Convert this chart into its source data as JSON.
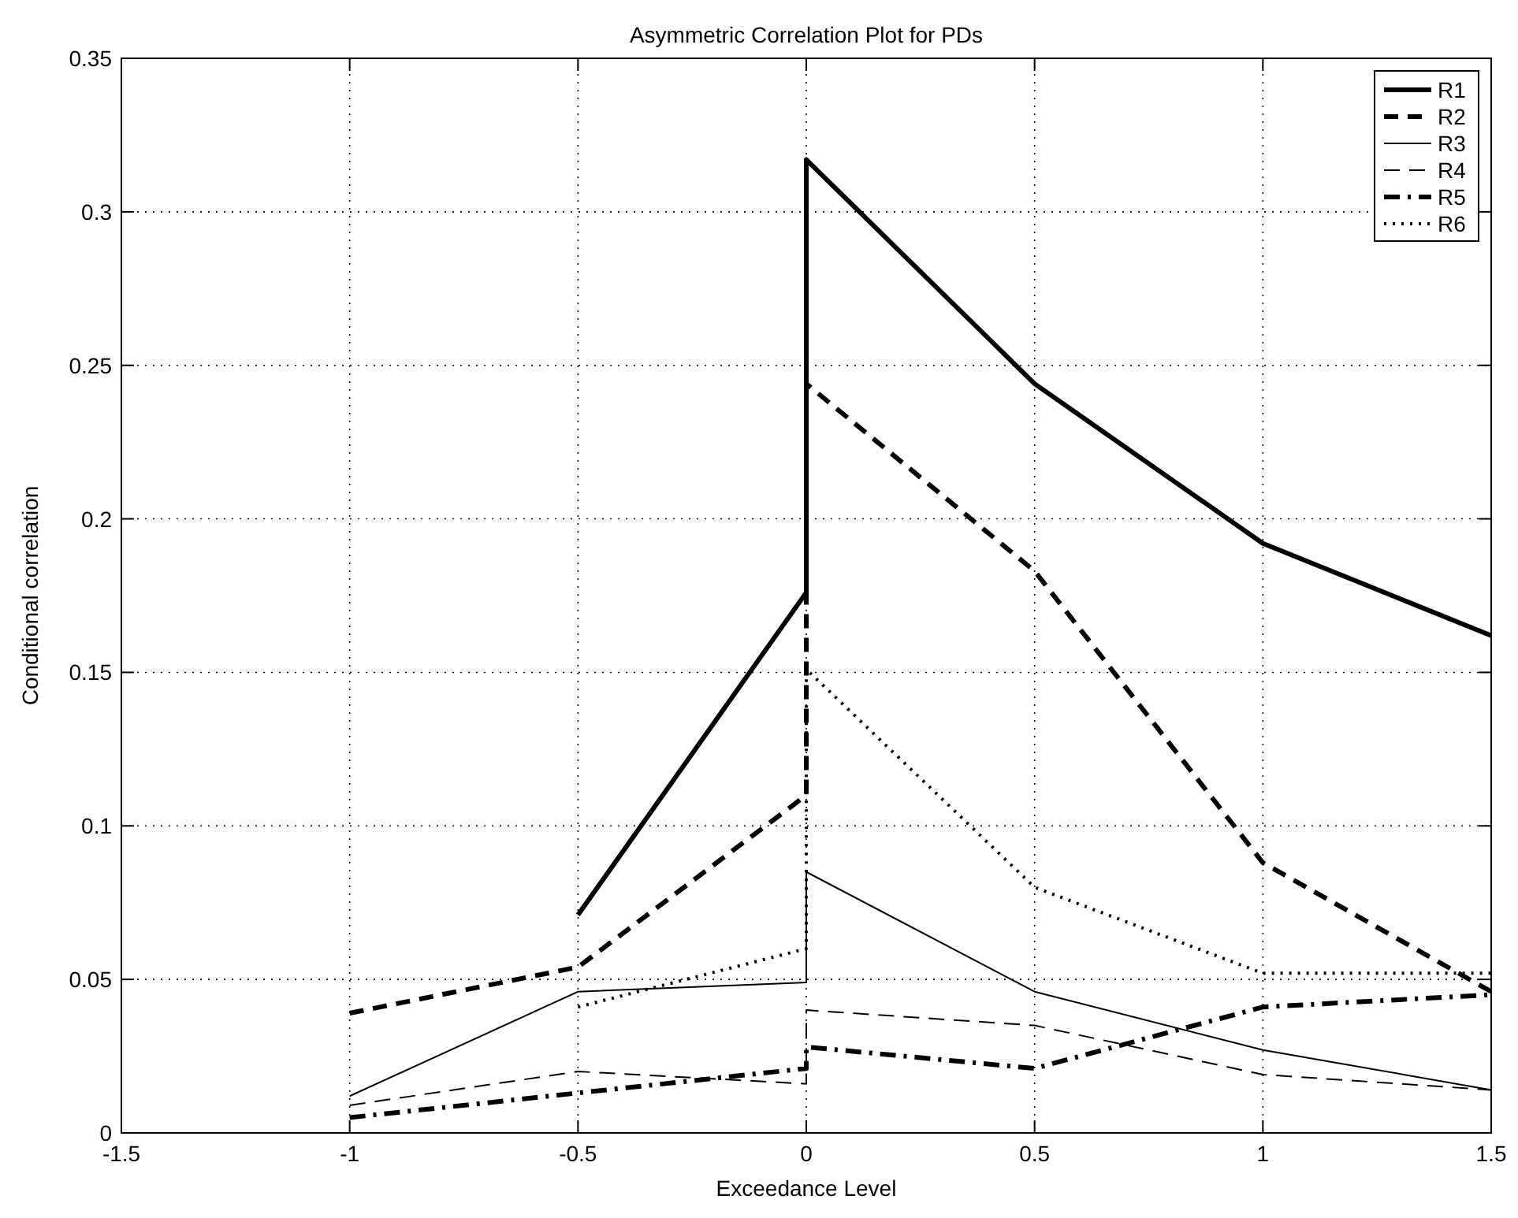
{
  "chart_data": {
    "type": "line",
    "title": "Asymmetric Correlation Plot for PDs",
    "xlabel": "Exceedance Level",
    "ylabel": "Conditional correlation",
    "xlim": [
      -1.5,
      1.5
    ],
    "xticks": [
      -1.5,
      -1,
      -0.5,
      0,
      0.5,
      1,
      1.5
    ],
    "ylim": [
      0,
      0.35
    ],
    "yticks": [
      0,
      0.05,
      0.1,
      0.15,
      0.2,
      0.25,
      0.3,
      0.35
    ],
    "grid": true,
    "legend": "top right",
    "series": [
      {
        "name": "R1",
        "color": "#000000",
        "line_style": "solid",
        "x": [
          -0.5,
          0,
          0,
          0.5,
          1,
          1.5
        ],
        "values": [
          0.071,
          0.176,
          0.317,
          0.244,
          0.192,
          0.162
        ]
      },
      {
        "name": "R2",
        "color": "#000000",
        "line_style": "dashed",
        "x": [
          -1,
          -0.5,
          0,
          0,
          0.5,
          1,
          1.5
        ],
        "values": [
          0.039,
          0.054,
          0.11,
          0.244,
          0.183,
          0.088,
          0.046
        ]
      },
      {
        "name": "R3",
        "color": "#000000",
        "line_style": "solid",
        "x": [
          -1,
          -0.5,
          0,
          0,
          0.5,
          1,
          1.5
        ],
        "values": [
          0.012,
          0.046,
          0.049,
          0.085,
          0.046,
          0.027,
          0.014
        ]
      },
      {
        "name": "R4",
        "color": "#000000",
        "line_style": "dashed",
        "x": [
          -1,
          -0.5,
          0,
          0,
          0.5,
          1,
          1.5
        ],
        "values": [
          0.009,
          0.02,
          0.016,
          0.04,
          0.035,
          0.019,
          0.014
        ]
      },
      {
        "name": "R5",
        "color": "#000000",
        "line_style": "dashdot",
        "x": [
          -1,
          -0.5,
          0,
          0,
          0.5,
          1,
          1.5
        ],
        "values": [
          0.005,
          0.013,
          0.021,
          0.028,
          0.021,
          0.041,
          0.045
        ]
      },
      {
        "name": "R6",
        "color": "#000000",
        "line_style": "dotted",
        "x": [
          -0.5,
          0,
          0,
          0.5,
          1,
          1.5
        ],
        "values": [
          0.041,
          0.06,
          0.151,
          0.08,
          0.052,
          0.052
        ]
      }
    ]
  }
}
